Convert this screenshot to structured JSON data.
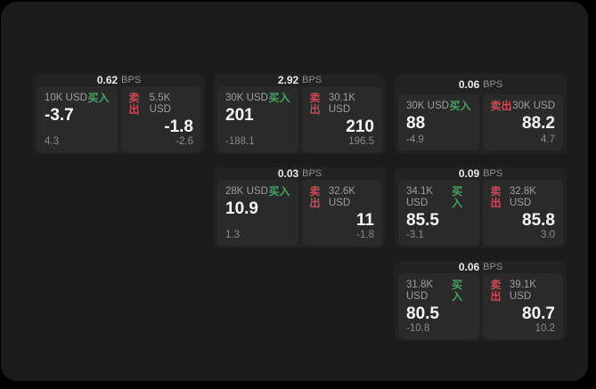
{
  "labels": {
    "bps": "BPS",
    "buy": "买入",
    "sell": "卖出"
  },
  "colors": {
    "buy_green": "#45a55e",
    "sell_red": "#d04a56",
    "window_bg": "#1c1c1d",
    "card_bg": "#222223",
    "panel_bg": "#2a2a2b",
    "canvas_bg": "#000000"
  },
  "cards": [
    {
      "bps": "0.62",
      "buy": {
        "amount": "10K USD",
        "value": "-3.7",
        "delta": "4.3"
      },
      "sell": {
        "amount": "5.5K USD",
        "value": "-1.8",
        "delta": "-2.6"
      }
    },
    {
      "bps": "2.92",
      "buy": {
        "amount": "30K USD",
        "value": "201",
        "delta": "-188.1"
      },
      "sell": {
        "amount": "30.1K USD",
        "value": "210",
        "delta": "196.5"
      }
    },
    {
      "bps": "0.06",
      "buy": {
        "amount": "30K USD",
        "value": "88",
        "delta": "-4.9"
      },
      "sell": {
        "amount": "30K USD",
        "value": "88.2",
        "delta": "4.7"
      }
    },
    {
      "bps": "0.03",
      "buy": {
        "amount": "28K USD",
        "value": "10.9",
        "delta": "1.3"
      },
      "sell": {
        "amount": "32.6K USD",
        "value": "11",
        "delta": "-1.8"
      }
    },
    {
      "bps": "0.09",
      "buy": {
        "amount": "34.1K USD",
        "value": "85.5",
        "delta": "-3.1"
      },
      "sell": {
        "amount": "32.8K USD",
        "value": "85.8",
        "delta": "3.0"
      }
    },
    {
      "bps": "0.06",
      "buy": {
        "amount": "31.8K USD",
        "value": "80.5",
        "delta": "-10.8"
      },
      "sell": {
        "amount": "39.1K USD",
        "value": "80.7",
        "delta": "10.2"
      }
    }
  ]
}
